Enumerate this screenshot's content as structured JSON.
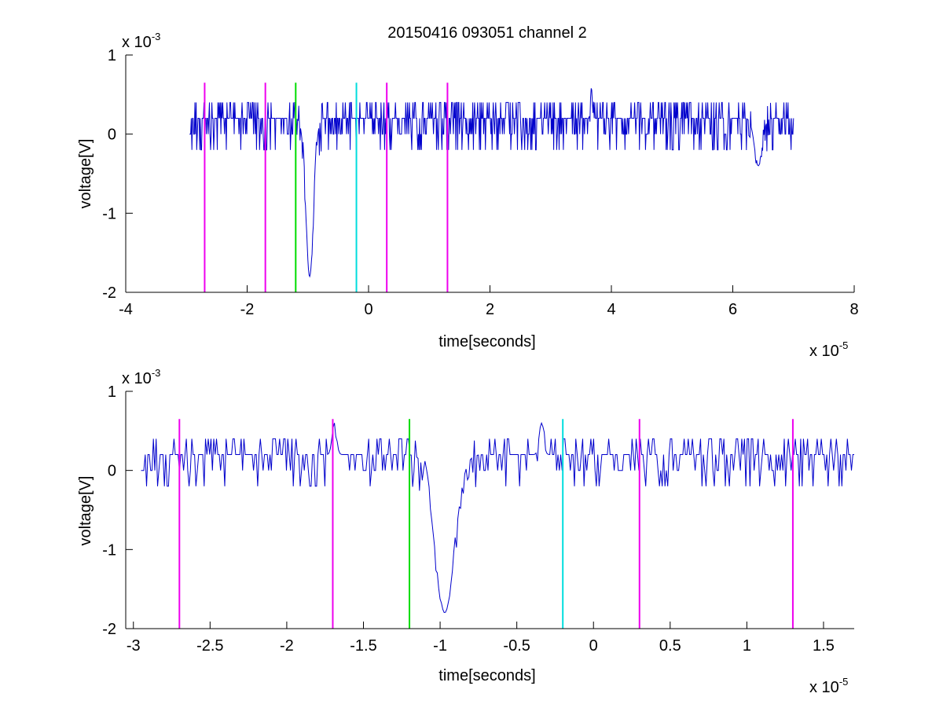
{
  "title": "20150416 093051 channel 2",
  "chart_data": [
    {
      "type": "line",
      "xlabel": "time[seconds]",
      "ylabel": "voltage[V]",
      "x_exponent_label": "x 10",
      "x_exponent": "-5",
      "y_exponent_label": "x 10",
      "y_exponent": "-3",
      "xlim": [
        -4,
        8
      ],
      "ylim": [
        -2,
        1
      ],
      "xticks": [
        -4,
        -2,
        0,
        2,
        4,
        6,
        8
      ],
      "xtick_labels": [
        "-4",
        "-2",
        "0",
        "2",
        "4",
        "6",
        "8"
      ],
      "yticks": [
        -2,
        -1,
        0,
        1
      ],
      "ytick_labels": [
        "-2",
        "-1",
        "0",
        "1"
      ],
      "signal": {
        "color": "#0000cc",
        "x_start": -2.95,
        "x_end": 7.0,
        "baseline": 0.18,
        "quantum": 0.2,
        "events": [
          {
            "x": -0.97,
            "y": -1.8
          },
          {
            "x": 3.67,
            "y": 0.6
          },
          {
            "x": 6.42,
            "y": -0.4
          }
        ]
      },
      "markers": [
        {
          "x": -2.7,
          "color": "#ee00ee"
        },
        {
          "x": -1.7,
          "color": "#ee00ee"
        },
        {
          "x": -1.2,
          "color": "#00dd00"
        },
        {
          "x": -0.2,
          "color": "#00dddd"
        },
        {
          "x": 0.3,
          "color": "#ee00ee"
        },
        {
          "x": 1.3,
          "color": "#ee00ee"
        }
      ]
    },
    {
      "type": "line",
      "xlabel": "time[seconds]",
      "ylabel": "voltage[V]",
      "x_exponent_label": "x 10",
      "x_exponent": "-5",
      "y_exponent_label": "x 10",
      "y_exponent": "-3",
      "xlim": [
        -3.05,
        1.7
      ],
      "ylim": [
        -2,
        1
      ],
      "xticks": [
        -3,
        -2.5,
        -2,
        -1.5,
        -1,
        -0.5,
        0,
        0.5,
        1,
        1.5
      ],
      "xtick_labels": [
        "-3",
        "-2.5",
        "-2",
        "-1.5",
        "-1",
        "-0.5",
        "0",
        "0.5",
        "1",
        "1.5"
      ],
      "yticks": [
        -2,
        -1,
        0,
        1
      ],
      "ytick_labels": [
        "-2",
        "-1",
        "0",
        "1"
      ],
      "signal": {
        "color": "#0000cc",
        "x_start": -2.95,
        "x_end": 1.7,
        "baseline": 0.18,
        "quantum": 0.2,
        "events": [
          {
            "x": -0.97,
            "y": -1.8
          },
          {
            "x": -1.69,
            "y": 0.6
          },
          {
            "x": -0.34,
            "y": 0.6
          }
        ]
      },
      "markers": [
        {
          "x": -2.7,
          "color": "#ee00ee"
        },
        {
          "x": -1.7,
          "color": "#ee00ee"
        },
        {
          "x": -1.2,
          "color": "#00dd00"
        },
        {
          "x": -0.2,
          "color": "#00dddd"
        },
        {
          "x": 0.3,
          "color": "#ee00ee"
        },
        {
          "x": 1.3,
          "color": "#ee00ee"
        }
      ]
    }
  ]
}
